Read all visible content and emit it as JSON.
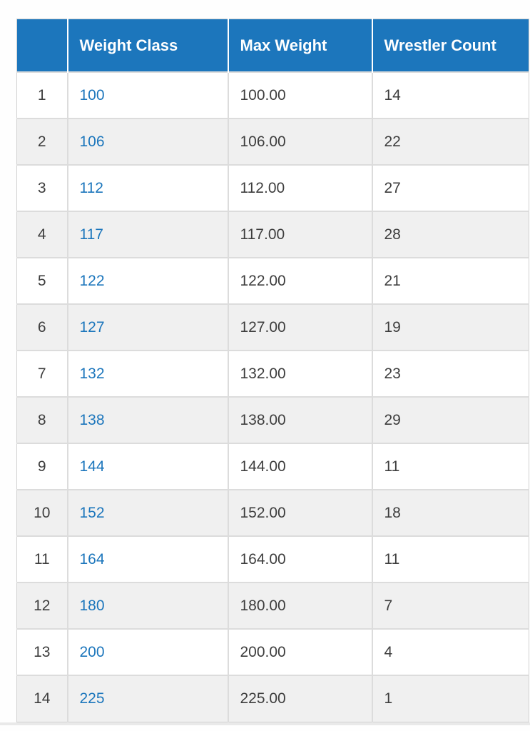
{
  "colors": {
    "header_bg": "#1c76bc",
    "link": "#1c76bc",
    "body_text": "#3d3d3d",
    "alt_row_bg": "#f0f0f0",
    "border": "#dcdcdc"
  },
  "table": {
    "columns": [
      "",
      "Weight Class",
      "Max Weight",
      "Wrestler Count"
    ],
    "rows": [
      {
        "index": "1",
        "weight_class": "100",
        "max_weight": "100.00",
        "wrestler_count": "14"
      },
      {
        "index": "2",
        "weight_class": "106",
        "max_weight": "106.00",
        "wrestler_count": "22"
      },
      {
        "index": "3",
        "weight_class": "112",
        "max_weight": "112.00",
        "wrestler_count": "27"
      },
      {
        "index": "4",
        "weight_class": "117",
        "max_weight": "117.00",
        "wrestler_count": "28"
      },
      {
        "index": "5",
        "weight_class": "122",
        "max_weight": "122.00",
        "wrestler_count": "21"
      },
      {
        "index": "6",
        "weight_class": "127",
        "max_weight": "127.00",
        "wrestler_count": "19"
      },
      {
        "index": "7",
        "weight_class": "132",
        "max_weight": "132.00",
        "wrestler_count": "23"
      },
      {
        "index": "8",
        "weight_class": "138",
        "max_weight": "138.00",
        "wrestler_count": "29"
      },
      {
        "index": "9",
        "weight_class": "144",
        "max_weight": "144.00",
        "wrestler_count": "11"
      },
      {
        "index": "10",
        "weight_class": "152",
        "max_weight": "152.00",
        "wrestler_count": "18"
      },
      {
        "index": "11",
        "weight_class": "164",
        "max_weight": "164.00",
        "wrestler_count": "11"
      },
      {
        "index": "12",
        "weight_class": "180",
        "max_weight": "180.00",
        "wrestler_count": "7"
      },
      {
        "index": "13",
        "weight_class": "200",
        "max_weight": "200.00",
        "wrestler_count": "4"
      },
      {
        "index": "14",
        "weight_class": "225",
        "max_weight": "225.00",
        "wrestler_count": "1"
      }
    ]
  }
}
